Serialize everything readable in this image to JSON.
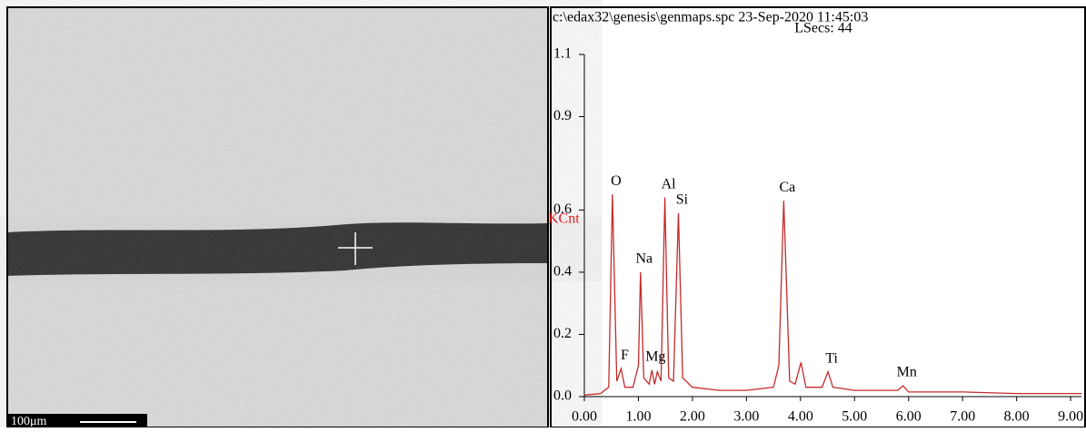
{
  "image": {
    "scale_label": "100μm"
  },
  "chart_data": {
    "type": "line",
    "title": "c:\\edax32\\genesis\\genmaps.spc 23-Sep-2020 11:45:03",
    "subtitle": "LSecs: 44",
    "y_label": "KCnt",
    "color": "#c42b2b",
    "x": [
      0.0,
      0.3,
      0.45,
      0.52,
      0.6,
      0.68,
      0.75,
      0.9,
      1.0,
      1.04,
      1.1,
      1.2,
      1.25,
      1.3,
      1.35,
      1.42,
      1.49,
      1.56,
      1.65,
      1.74,
      1.82,
      2.0,
      2.5,
      3.0,
      3.5,
      3.6,
      3.69,
      3.8,
      3.9,
      4.01,
      4.1,
      4.4,
      4.51,
      4.6,
      5.0,
      5.5,
      5.8,
      5.9,
      6.0,
      7.0,
      8.0,
      9.2
    ],
    "values": [
      0.005,
      0.01,
      0.03,
      0.65,
      0.05,
      0.09,
      0.03,
      0.03,
      0.1,
      0.4,
      0.06,
      0.04,
      0.085,
      0.04,
      0.08,
      0.05,
      0.64,
      0.06,
      0.05,
      0.59,
      0.06,
      0.03,
      0.02,
      0.02,
      0.03,
      0.1,
      0.63,
      0.05,
      0.04,
      0.11,
      0.03,
      0.03,
      0.08,
      0.03,
      0.02,
      0.02,
      0.02,
      0.035,
      0.015,
      0.015,
      0.01,
      0.01
    ],
    "annotations": [
      {
        "text": "O",
        "x": 0.52
      },
      {
        "text": "F",
        "x": 0.68
      },
      {
        "text": "Na",
        "x": 1.04
      },
      {
        "text": "Mg",
        "x": 1.25
      },
      {
        "text": "Al",
        "x": 1.49
      },
      {
        "text": "Si",
        "x": 1.74
      },
      {
        "text": "Ca",
        "x": 3.69
      },
      {
        "text": "Ti",
        "x": 4.51
      },
      {
        "text": "Mn",
        "x": 5.9
      }
    ],
    "xlim": [
      0,
      9.2
    ],
    "xticks": [
      {
        "value": 0,
        "label": "0.00"
      },
      {
        "value": 1,
        "label": "1.00"
      },
      {
        "value": 2,
        "label": "2.00"
      },
      {
        "value": 3,
        "label": "3.00"
      },
      {
        "value": 4,
        "label": "4.00"
      },
      {
        "value": 5,
        "label": "5.00"
      },
      {
        "value": 6,
        "label": "6.00"
      },
      {
        "value": 7,
        "label": "7.00"
      },
      {
        "value": 8,
        "label": "8.00"
      },
      {
        "value": 9,
        "label": "9.00"
      }
    ],
    "ylim": [
      0,
      1.1
    ],
    "yticks": [
      {
        "value": 0,
        "label": "0.0"
      },
      0.2,
      0.4,
      0.6,
      0.9,
      1.1
    ]
  }
}
